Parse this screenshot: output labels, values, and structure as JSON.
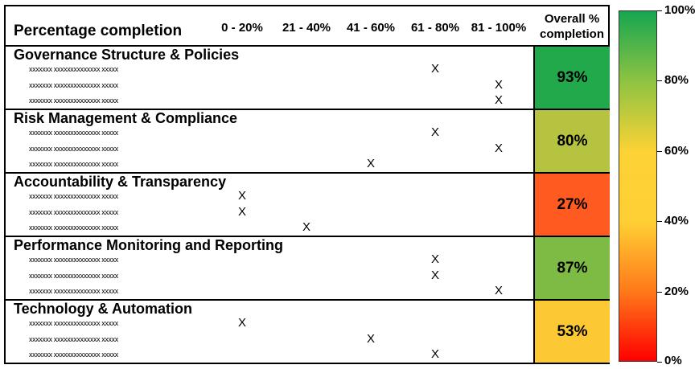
{
  "chart_data": {
    "type": "table",
    "title": "Percentage completion",
    "columns": [
      "0 - 20%",
      "21 - 40%",
      "41 - 60%",
      "61 - 80%",
      "81 - 100%"
    ],
    "overall_header_lines": [
      "Overall %",
      "completion"
    ],
    "mark_symbol": "X",
    "sections": [
      {
        "name": "Governance Structure & Policies",
        "overall": "93%",
        "overall_value": 93,
        "color": "#22a94b",
        "items": [
          {
            "label": "xxxxxxx xxxxxxxxxxxxxx xxxxx",
            "bucket": 3
          },
          {
            "label": "xxxxxxx xxxxxxxxxxxxxx xxxxx",
            "bucket": 4
          },
          {
            "label": "xxxxxxx xxxxxxxxxxxxxx xxxxx",
            "bucket": 4
          }
        ]
      },
      {
        "name": "Risk Management & Compliance",
        "overall": "80%",
        "overall_value": 80,
        "color": "#b6c341",
        "items": [
          {
            "label": "xxxxxxx xxxxxxxxxxxxxx xxxxx",
            "bucket": 3
          },
          {
            "label": "xxxxxxx xxxxxxxxxxxxxx xxxxx",
            "bucket": 4
          },
          {
            "label": "xxxxxxx xxxxxxxxxxxxxx xxxxx",
            "bucket": 2
          }
        ]
      },
      {
        "name": "Accountability & Transparency",
        "overall": "27%",
        "overall_value": 27,
        "color": "#ff5a1f",
        "items": [
          {
            "label": "xxxxxxx xxxxxxxxxxxxxx xxxxx",
            "bucket": 0
          },
          {
            "label": "xxxxxxx xxxxxxxxxxxxxx xxxxx",
            "bucket": 0
          },
          {
            "label": "xxxxxxx xxxxxxxxxxxxxx xxxxx",
            "bucket": 1
          }
        ]
      },
      {
        "name": "Performance Monitoring and Reporting",
        "overall": "87%",
        "overall_value": 87,
        "color": "#7dbb45",
        "items": [
          {
            "label": "xxxxxxx xxxxxxxxxxxxxx xxxxx",
            "bucket": 3
          },
          {
            "label": "xxxxxxx xxxxxxxxxxxxxx xxxxx",
            "bucket": 3
          },
          {
            "label": "xxxxxxx xxxxxxxxxxxxxx xxxxx",
            "bucket": 4
          }
        ]
      },
      {
        "name": "Technology & Automation",
        "overall": "53%",
        "overall_value": 53,
        "color": "#fcc834",
        "items": [
          {
            "label": "xxxxxxx xxxxxxxxxxxxxx xxxxx",
            "bucket": 0
          },
          {
            "label": "xxxxxxx xxxxxxxxxxxxxx xxxxx",
            "bucket": 2
          },
          {
            "label": "xxxxxxx xxxxxxxxxxxxxx xxxxx",
            "bucket": 3
          }
        ]
      }
    ],
    "colorbar": {
      "range": [
        0,
        100
      ],
      "ticks": [
        0,
        20,
        40,
        60,
        80,
        100
      ],
      "tick_labels": [
        "0%",
        "20%",
        "40%",
        "60%",
        "80%",
        "100%"
      ],
      "colors": [
        "#ff0000",
        "#ff7a1a",
        "#ffd035",
        "#fcd235",
        "#8dc343",
        "#16a650"
      ]
    }
  }
}
